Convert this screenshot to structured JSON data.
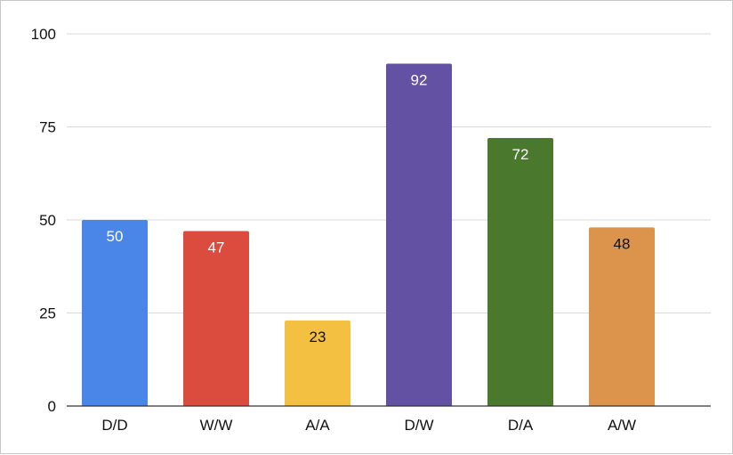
{
  "chart_data": {
    "type": "bar",
    "categories": [
      "D/D",
      "W/W",
      "A/A",
      "D/W",
      "D/A",
      "A/W"
    ],
    "values": [
      50,
      47,
      23,
      92,
      72,
      48
    ],
    "colors": [
      "#4a86e8",
      "#db4c3f",
      "#f4c042",
      "#6351a3",
      "#4a782c",
      "#dc944c"
    ],
    "label_colors": [
      "#ffffff",
      "#ffffff",
      "#111111",
      "#ffffff",
      "#ffffff",
      "#111111"
    ],
    "ylim": [
      0,
      100
    ],
    "yticks": [
      0,
      25,
      50,
      75,
      100
    ],
    "grid": true,
    "legend": "none"
  }
}
